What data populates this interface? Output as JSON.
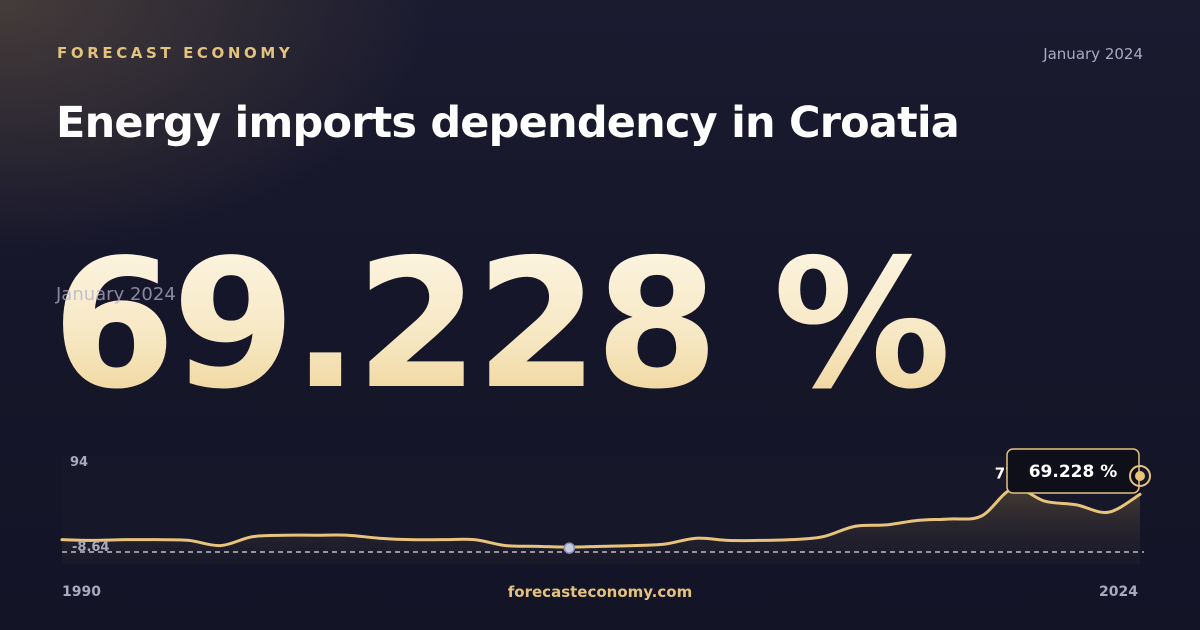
{
  "brand": "FORECAST ECONOMY",
  "date": "January 2024",
  "title": "Energy imports dependency in Croatia",
  "headline_value": "69.228 %",
  "footer": {
    "site": "forecasteconomy.com"
  },
  "colors": {
    "accent": "#e3c27f",
    "line": "#e8c37b",
    "background": "#16162a"
  },
  "chart_data": {
    "type": "area",
    "x_start_label": "1990",
    "x_end_label": "2024",
    "x": [
      1990,
      1991,
      1992,
      1993,
      1994,
      1995,
      1996,
      1997,
      1998,
      1999,
      2000,
      2001,
      2002,
      2003,
      2004,
      2005,
      2006,
      2007,
      2008,
      2009,
      2010,
      2011,
      2012,
      2013,
      2014,
      2015,
      2016,
      2017,
      2018,
      2019,
      2020,
      2021,
      2022,
      2023,
      2024
    ],
    "values": [
      8,
      7,
      8,
      8,
      7,
      0,
      12,
      14,
      14,
      14,
      10,
      8,
      8,
      8,
      0,
      -1,
      -2,
      -1,
      0,
      2,
      10,
      7,
      7,
      8,
      12,
      26,
      28,
      34,
      36,
      40,
      77,
      60,
      55,
      45,
      69.228
    ],
    "ylim": [
      -8.64,
      94
    ],
    "ymin_label": "-8.64",
    "ymax_label": "94",
    "max_value_label": "77",
    "last_value_label": "69.228 %",
    "min_index": 16,
    "max_index": 30,
    "baseline": "dashed"
  }
}
